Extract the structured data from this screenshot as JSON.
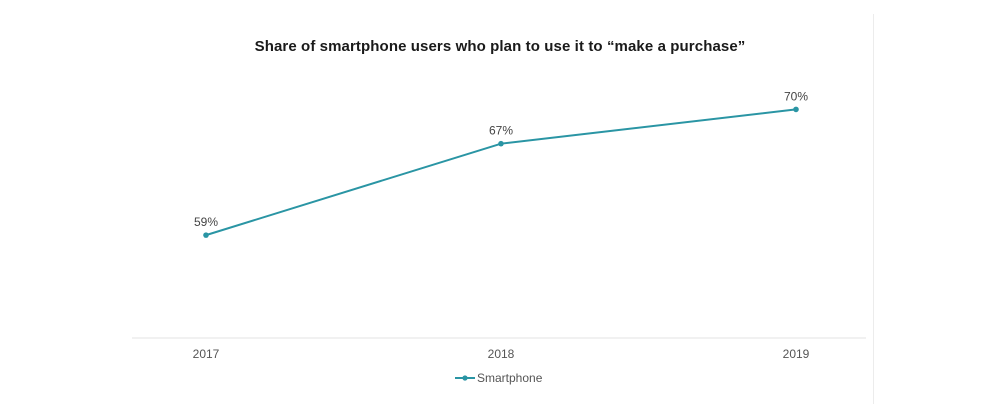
{
  "colors": {
    "series": "#2a95a4",
    "axis": "#e3e3e3",
    "text": "#555555"
  },
  "chart_data": {
    "type": "line",
    "title": "Share of smartphone users who plan to use it to “make a purchase”",
    "xlabel": "",
    "ylabel": "",
    "categories": [
      "2017",
      "2018",
      "2019"
    ],
    "ylim": [
      50,
      75
    ],
    "grid": false,
    "legend_position": "bottom-center",
    "series": [
      {
        "name": "Smartphone",
        "values": [
          59,
          67,
          70
        ],
        "labels": [
          "59%",
          "67%",
          "70%"
        ]
      }
    ]
  }
}
